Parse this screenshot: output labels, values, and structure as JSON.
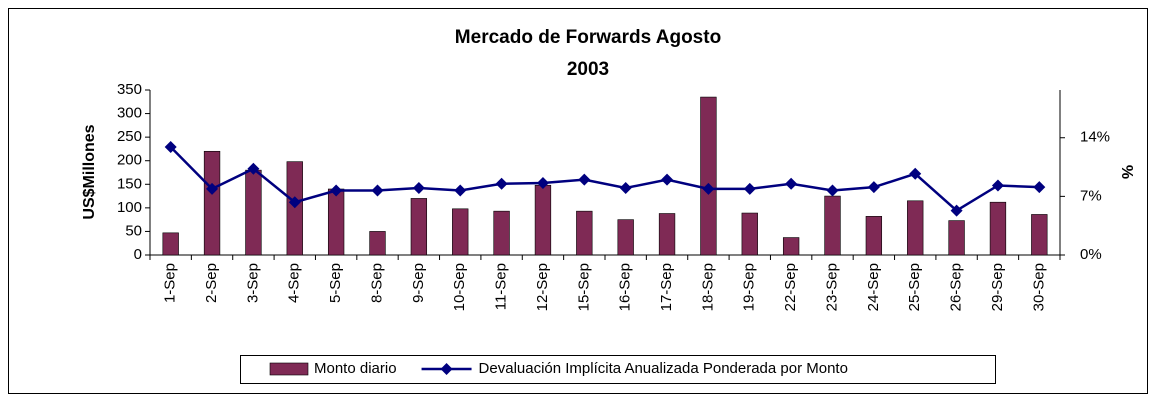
{
  "chart_data": {
    "type": "bar",
    "title": [
      "Mercado de Forwards Agosto",
      "2003"
    ],
    "ylabel": "US$Millones",
    "y2label": "%",
    "categories": [
      "1-Sep",
      "2-Sep",
      "3-Sep",
      "4-Sep",
      "5-Sep",
      "8-Sep",
      "9-Sep",
      "10-Sep",
      "11-Sep",
      "12-Sep",
      "15-Sep",
      "16-Sep",
      "17-Sep",
      "18-Sep",
      "19-Sep",
      "22-Sep",
      "23-Sep",
      "24-Sep",
      "25-Sep",
      "26-Sep",
      "29-Sep",
      "30-Sep"
    ],
    "series": [
      {
        "name": "Monto diario",
        "type": "bar",
        "color": "#7f2a55",
        "values": [
          47,
          220,
          180,
          198,
          140,
          50,
          120,
          98,
          93,
          148,
          93,
          75,
          88,
          335,
          89,
          37,
          125,
          82,
          115,
          73,
          112,
          86
        ]
      },
      {
        "name": "Devaluación Implícita Anualizada Ponderada por Monto",
        "type": "line",
        "axis": "y2",
        "color": "#00007f",
        "values": [
          12.9,
          7.9,
          10.3,
          6.3,
          7.7,
          7.7,
          8.0,
          7.7,
          8.5,
          8.6,
          9.0,
          8.0,
          9.0,
          7.9,
          7.9,
          8.5,
          7.7,
          8.1,
          9.7,
          5.3,
          8.3,
          8.1
        ]
      }
    ],
    "ylim": [
      0,
      350
    ],
    "yticks": [
      0,
      50,
      100,
      150,
      200,
      250,
      300,
      350
    ],
    "y2lim": [
      0,
      19.7
    ],
    "y2ticks": [
      {
        "value": 0,
        "label": "0%"
      },
      {
        "value": 7,
        "label": "7%"
      },
      {
        "value": 14,
        "label": "14%"
      }
    ],
    "grid": false,
    "legend": "bottom"
  }
}
